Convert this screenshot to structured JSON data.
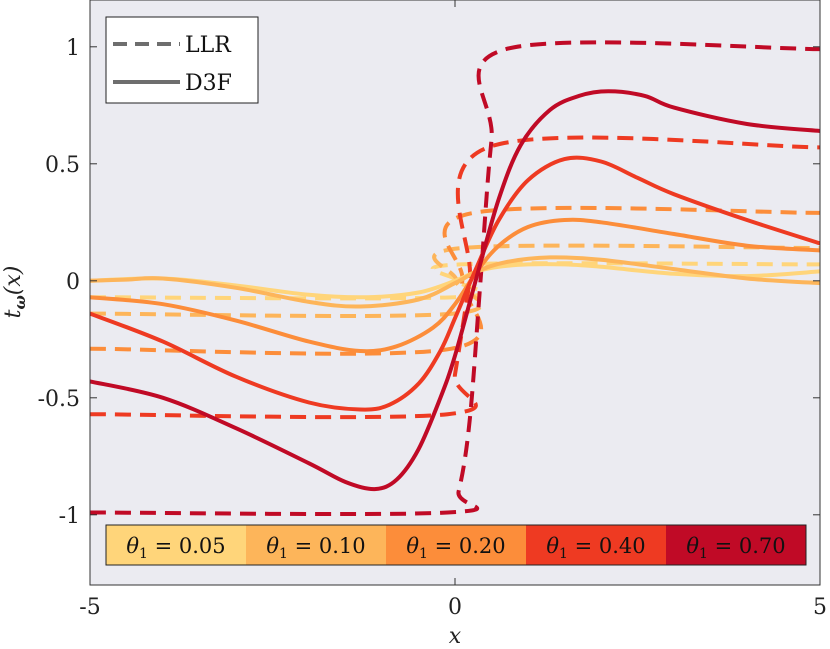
{
  "chart_data": {
    "type": "line",
    "title": "",
    "xlabel": "x",
    "ylabel": "t_ω(x)",
    "ylabel_main": "t",
    "ylabel_sub": "ω",
    "ylabel_arg": "(x)",
    "xlim": [
      -5,
      5
    ],
    "ylim": [
      -1.3,
      1.2
    ],
    "x_ticks": [
      -5,
      0,
      5
    ],
    "x_tick_labels": [
      "-5",
      "0",
      "5"
    ],
    "y_ticks": [
      1,
      0.5,
      0,
      -0.5,
      -1
    ],
    "y_tick_labels": [
      "1",
      "0.5",
      "0",
      "-0.5",
      "-1"
    ],
    "background": "#ebebf1",
    "grid": false,
    "legend": {
      "placement": "top-left",
      "entries": [
        {
          "label": "LLR",
          "style": "dashed",
          "color": "#6e6e6e"
        },
        {
          "label": "D3F",
          "style": "solid",
          "color": "#6e6e6e"
        }
      ]
    },
    "colorbar": {
      "placement": "bottom-center",
      "entries": [
        {
          "label": "θ1 = 0.05",
          "theta": 0.05,
          "color": "#ffd57a"
        },
        {
          "label": "θ1 = 0.10",
          "theta": 0.1,
          "color": "#fdb55a"
        },
        {
          "label": "θ1 = 0.20",
          "theta": 0.2,
          "color": "#fc8d3a"
        },
        {
          "label": "θ1 = 0.40",
          "theta": 0.4,
          "color": "#ee3a22"
        },
        {
          "label": "θ1 = 0.70",
          "theta": 0.7,
          "color": "#c00a26"
        }
      ]
    },
    "series": [
      {
        "name": "LLR θ1 = 0.05",
        "style": "dashed",
        "color": "#ffd57a",
        "x": [
          -5,
          0,
          0.03,
          0.07,
          5
        ],
        "y": [
          -0.07,
          -0.07,
          0,
          0.07,
          0.07
        ]
      },
      {
        "name": "LLR θ1 = 0.10",
        "style": "dashed",
        "color": "#fdb55a",
        "x": [
          -5,
          -0.02,
          0.02,
          0.1,
          5
        ],
        "y": [
          -0.14,
          -0.14,
          0,
          0.14,
          0.14
        ]
      },
      {
        "name": "LLR θ1 = 0.20",
        "style": "dashed",
        "color": "#fc8d3a",
        "x": [
          -5,
          -0.05,
          0.1,
          0.25,
          5
        ],
        "y": [
          -0.29,
          -0.29,
          0,
          0.29,
          0.29
        ]
      },
      {
        "name": "LLR θ1 = 0.40",
        "style": "dashed",
        "color": "#ee3a22",
        "x": [
          -5,
          -0.1,
          0,
          0.2,
          0.45,
          5
        ],
        "y": [
          -0.57,
          -0.57,
          -0.4,
          0,
          0.57,
          0.57
        ]
      },
      {
        "name": "LLR θ1 = 0.70",
        "style": "dashed",
        "color": "#c00a26",
        "x": [
          -5,
          -0.1,
          0.05,
          0.2,
          0.35,
          0.5,
          0.7,
          5
        ],
        "y": [
          -0.99,
          -0.99,
          -0.9,
          -0.6,
          0,
          0.6,
          0.99,
          0.99
        ]
      },
      {
        "name": "D3F θ1 = 0.05",
        "style": "solid",
        "color": "#ffd57a",
        "x": [
          -5,
          -4,
          -3,
          -2,
          -1.2,
          -0.5,
          0,
          0.3,
          0.6,
          1,
          1.5,
          2,
          3,
          4,
          5
        ],
        "y": [
          0,
          0.01,
          -0.02,
          -0.06,
          -0.07,
          -0.05,
          0,
          0.04,
          0.06,
          0.07,
          0.07,
          0.06,
          0.03,
          0.02,
          0.04
        ]
      },
      {
        "name": "D3F θ1 = 0.10",
        "style": "solid",
        "color": "#fdb55a",
        "x": [
          -5,
          -4.5,
          -4,
          -3,
          -2,
          -1.3,
          -0.5,
          0,
          0.3,
          0.7,
          1.3,
          2,
          3,
          4,
          5
        ],
        "y": [
          0,
          0.005,
          0.01,
          -0.03,
          -0.09,
          -0.11,
          -0.08,
          -0.01,
          0.04,
          0.08,
          0.1,
          0.09,
          0.05,
          0.01,
          -0.01
        ]
      },
      {
        "name": "D3F θ1 = 0.20",
        "style": "solid",
        "color": "#fc8d3a",
        "x": [
          -5,
          -4,
          -3,
          -2,
          -1.3,
          -0.8,
          -0.3,
          0,
          0.3,
          0.6,
          1,
          1.5,
          2,
          3,
          4,
          5
        ],
        "y": [
          -0.07,
          -0.1,
          -0.17,
          -0.26,
          -0.3,
          -0.28,
          -0.2,
          -0.1,
          0.04,
          0.15,
          0.23,
          0.26,
          0.25,
          0.2,
          0.15,
          0.13
        ]
      },
      {
        "name": "D3F θ1 = 0.40",
        "style": "solid",
        "color": "#ee3a22",
        "x": [
          -5,
          -4,
          -3,
          -2,
          -1.3,
          -0.9,
          -0.5,
          -0.2,
          0,
          0.3,
          0.6,
          1,
          1.5,
          2,
          2.5,
          3,
          4,
          5
        ],
        "y": [
          -0.14,
          -0.26,
          -0.41,
          -0.52,
          -0.55,
          -0.53,
          -0.44,
          -0.3,
          -0.16,
          0.06,
          0.26,
          0.43,
          0.52,
          0.51,
          0.44,
          0.37,
          0.26,
          0.16
        ]
      },
      {
        "name": "D3F θ1 = 0.70",
        "style": "solid",
        "color": "#c00a26",
        "x": [
          -5,
          -4,
          -3,
          -2,
          -1.5,
          -1.1,
          -0.8,
          -0.5,
          -0.2,
          0,
          0.3,
          0.6,
          0.9,
          1.3,
          1.7,
          2.1,
          2.6,
          3,
          4,
          5
        ],
        "y": [
          -0.43,
          -0.5,
          -0.63,
          -0.78,
          -0.86,
          -0.89,
          -0.85,
          -0.72,
          -0.5,
          -0.32,
          0.02,
          0.35,
          0.58,
          0.73,
          0.79,
          0.81,
          0.79,
          0.74,
          0.67,
          0.64
        ]
      }
    ]
  }
}
